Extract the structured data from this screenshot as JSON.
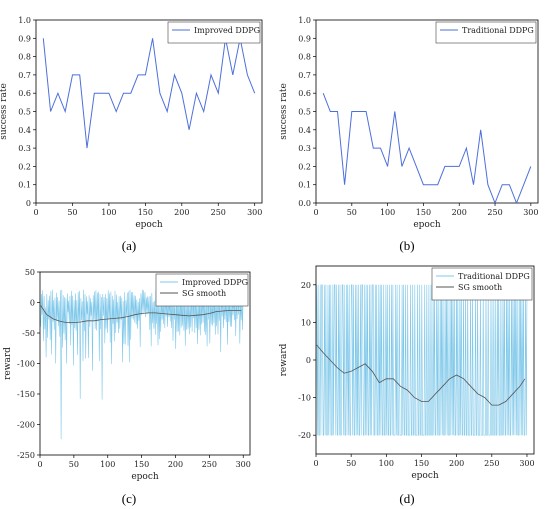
{
  "chart_data": [
    {
      "panel_label": "(a)",
      "type": "line",
      "xlabel": "epoch",
      "ylabel": "success rate",
      "xlim": [
        0,
        310
      ],
      "ylim": [
        0,
        1.0
      ],
      "xticks": [
        "0",
        "50",
        "100",
        "150",
        "200",
        "250",
        "300"
      ],
      "yticks": [
        "0",
        "0.1",
        "0.2",
        "0.3",
        "0.4",
        "0.5",
        "0.6",
        "0.7",
        "0.8",
        "0.9",
        "1.0"
      ],
      "legend_position": "top-right",
      "series": [
        {
          "name": "Improved DDPG",
          "color": "#4d6fdc",
          "x": [
            10,
            20,
            30,
            40,
            50,
            60,
            70,
            80,
            90,
            100,
            110,
            120,
            130,
            140,
            150,
            160,
            170,
            180,
            190,
            200,
            210,
            220,
            230,
            240,
            250,
            260,
            270,
            280,
            290,
            300
          ],
          "y": [
            0.9,
            0.5,
            0.6,
            0.5,
            0.7,
            0.7,
            0.3,
            0.6,
            0.6,
            0.6,
            0.5,
            0.6,
            0.6,
            0.7,
            0.7,
            0.9,
            0.6,
            0.5,
            0.7,
            0.6,
            0.4,
            0.6,
            0.5,
            0.7,
            0.6,
            0.9,
            0.7,
            0.9,
            0.7,
            0.6
          ]
        }
      ]
    },
    {
      "panel_label": "(b)",
      "type": "line",
      "xlabel": "epoch",
      "ylabel": "success rate",
      "xlim": [
        0,
        310
      ],
      "ylim": [
        0,
        1.0
      ],
      "xticks": [
        "0",
        "50",
        "100",
        "150",
        "200",
        "250",
        "300"
      ],
      "yticks": [
        "0.0",
        "0.1",
        "0.2",
        "0.3",
        "0.4",
        "0.5",
        "0.6",
        "0.7",
        "0.8",
        "0.9",
        "1.0"
      ],
      "legend_position": "top-right",
      "series": [
        {
          "name": "Traditional DDPG",
          "color": "#4d6fdc",
          "x": [
            10,
            20,
            30,
            40,
            50,
            60,
            70,
            80,
            90,
            100,
            110,
            120,
            130,
            140,
            150,
            160,
            170,
            180,
            190,
            200,
            210,
            220,
            230,
            240,
            250,
            260,
            270,
            280,
            290,
            300
          ],
          "y": [
            0.6,
            0.5,
            0.5,
            0.1,
            0.5,
            0.5,
            0.5,
            0.3,
            0.3,
            0.2,
            0.5,
            0.2,
            0.3,
            0.2,
            0.1,
            0.1,
            0.1,
            0.2,
            0.2,
            0.2,
            0.3,
            0.1,
            0.4,
            0.1,
            0.0,
            0.1,
            0.1,
            0.0,
            0.1,
            0.2
          ]
        }
      ]
    },
    {
      "panel_label": "(c)",
      "type": "line",
      "xlabel": "epoch",
      "ylabel": "reward",
      "xlim": [
        0,
        310
      ],
      "ylim": [
        -250,
        50
      ],
      "xticks": [
        "0",
        "50",
        "100",
        "150",
        "200",
        "250",
        "300"
      ],
      "yticks": [
        "-250",
        "-200",
        "-150",
        "-100",
        "-50",
        "0",
        "50"
      ],
      "legend_position": "top-right",
      "series": [
        {
          "name": "Improved DDPG",
          "color": "#7fc8ea",
          "style": "dense-noisy",
          "values": [
            -40,
            14,
            -20,
            20,
            -63,
            11,
            -44,
            -8,
            -90,
            14,
            -58,
            4,
            -28,
            11,
            -62,
            19,
            -85,
            21,
            -32,
            4,
            -45,
            8,
            -100,
            16,
            -30,
            9,
            -39,
            3,
            -56,
            20,
            -224,
            21,
            -74,
            12,
            -51,
            9,
            -62,
            7,
            -100,
            15,
            -16,
            3,
            -35,
            11,
            -70,
            19,
            -37,
            11,
            -103,
            4,
            -42,
            15,
            -46,
            4,
            -86,
            17,
            -31,
            19,
            -158,
            7,
            -29,
            2,
            -96,
            21,
            -47,
            14,
            -92,
            10,
            -19,
            2,
            -91,
            12,
            -40,
            7,
            -22,
            1,
            -112,
            12,
            -28,
            18,
            -43,
            20,
            -46,
            16,
            -31,
            18,
            -96,
            14,
            -44,
            9,
            -159,
            14,
            -22,
            9,
            -67,
            14,
            -43,
            7,
            -50,
            20,
            -28,
            15,
            -66,
            18,
            -101,
            11,
            -35,
            5,
            -64,
            19,
            -50,
            13,
            -33,
            1,
            -50,
            10,
            -43,
            11,
            -28,
            8,
            -98,
            2,
            -68,
            17,
            -69,
            4,
            -22,
            16,
            -71,
            18,
            -98,
            21,
            -61,
            17,
            -26,
            17,
            -28,
            12,
            -33,
            11,
            -36,
            5,
            -43,
            1,
            -30,
            7,
            -73,
            15,
            -21,
            21,
            -18,
            20,
            -16,
            17,
            -24,
            8,
            -19,
            10,
            -18,
            10,
            -45,
            11,
            -72,
            16,
            -34,
            1,
            -43,
            3,
            -53,
            20,
            -35,
            4,
            -70,
            12,
            -60,
            2,
            -48,
            10,
            -28,
            2,
            -35,
            18,
            -42,
            17,
            -23,
            12,
            -40,
            10,
            -24,
            5,
            -31,
            11,
            -42,
            15,
            -63,
            6,
            -28,
            3,
            -76,
            13,
            -48,
            16,
            -48,
            8,
            -54,
            20,
            -41,
            6,
            -38,
            14,
            -46,
            5,
            -71,
            17,
            -45,
            3,
            -43,
            5,
            -52,
            2,
            -41,
            20,
            -48,
            11,
            -26,
            10,
            -50,
            20,
            -42,
            6,
            -68,
            9,
            -45,
            11,
            -54,
            17,
            -36,
            14,
            -33,
            20,
            -48,
            14,
            -53,
            3,
            -72,
            20,
            -28,
            15,
            -67,
            6,
            -36,
            10,
            -38,
            12,
            -34,
            8,
            -53,
            17,
            -39,
            3,
            -52,
            10,
            -30,
            14,
            -81,
            19,
            -23,
            17,
            -42,
            1,
            -28,
            7,
            -32,
            12,
            -69,
            19,
            -32,
            7,
            -39,
            4,
            -40,
            9,
            -21,
            11,
            -29,
            20,
            -55,
            7,
            -27,
            17,
            -20,
            19,
            -67,
            2,
            -29,
            6,
            -45,
            20
          ]
        },
        {
          "name": "SG smooth",
          "color": "#555555",
          "style": "smooth",
          "x": [
            1,
            10,
            20,
            30,
            40,
            50,
            60,
            70,
            80,
            90,
            100,
            110,
            120,
            130,
            140,
            150,
            160,
            170,
            180,
            190,
            200,
            210,
            220,
            230,
            240,
            250,
            260,
            270,
            280,
            290,
            297
          ],
          "y": [
            -5,
            -20,
            -27,
            -31,
            -33,
            -33,
            -32,
            -30,
            -30,
            -28,
            -27,
            -26,
            -25,
            -23,
            -20,
            -18,
            -17,
            -17,
            -18,
            -19,
            -20,
            -21,
            -22,
            -21,
            -20,
            -18,
            -15,
            -14,
            -13,
            -13,
            -13
          ]
        }
      ]
    },
    {
      "panel_label": "(d)",
      "type": "line",
      "xlabel": "epoch",
      "ylabel": "reward",
      "xlim": [
        0,
        310
      ],
      "ylim": [
        -25,
        25
      ],
      "xticks": [
        "0",
        "50",
        "100",
        "150",
        "200",
        "250",
        "300"
      ],
      "yticks": [
        "-20",
        "-10",
        "0",
        "10",
        "20"
      ],
      "legend_position": "top-right",
      "series": [
        {
          "name": "Traditional DDPG",
          "color": "#7fc8ea",
          "style": "binary-noisy",
          "values": [
            20,
            -20,
            20,
            -20,
            -20,
            20,
            -20,
            20,
            20,
            -20,
            -20,
            20,
            -20,
            20,
            -20,
            -20,
            20,
            -20,
            20,
            -20,
            20,
            -20,
            -20,
            20,
            -20,
            20,
            20,
            -20,
            20,
            -20,
            -20,
            20,
            -20,
            20,
            -20,
            -20,
            20,
            20,
            -20,
            20,
            -20,
            -20,
            20,
            -20,
            20,
            -20,
            20,
            -20,
            -20,
            20,
            20,
            -20,
            20,
            -20,
            -20,
            20,
            -20,
            20,
            -20,
            20,
            -20,
            -20,
            20,
            -20,
            20,
            20,
            -20,
            -20,
            20,
            -20,
            20,
            -20,
            20,
            -20,
            -20,
            20,
            -20,
            20,
            -20,
            20,
            20,
            -20,
            -20,
            20,
            -20,
            20,
            -20,
            -20,
            20,
            -20,
            20,
            -20,
            20,
            -20,
            -20,
            20,
            -20,
            -20,
            20,
            -20,
            20,
            -20,
            -20,
            20,
            -20,
            -20,
            20,
            -20,
            20,
            -20,
            -20,
            -20,
            20,
            -20,
            20,
            -20,
            -20,
            20,
            -20,
            -20,
            -20,
            20,
            -20,
            20,
            -20,
            -20,
            20,
            -20,
            -20,
            20,
            -20,
            -20,
            -20,
            20,
            -20,
            -20,
            20,
            -20,
            -20,
            20,
            -20,
            -20,
            -20,
            20,
            -20,
            -20,
            20,
            -20,
            -20,
            20,
            -20,
            -20,
            -20,
            20,
            -20,
            -20,
            20,
            -20,
            -20,
            20,
            -20,
            -20,
            20,
            -20,
            -20,
            20,
            -20,
            20,
            -20,
            -20,
            20,
            -20,
            20,
            -20,
            -20,
            20,
            -20,
            20,
            -20,
            20,
            -20,
            -20,
            20,
            -20,
            20,
            -20,
            20,
            -20,
            -20,
            20,
            -20,
            20,
            -20,
            20,
            -20,
            20,
            -20,
            -20,
            20,
            -20,
            20,
            -20,
            -20,
            20,
            -20,
            20,
            -20,
            -20,
            20,
            -20,
            -20,
            20,
            -20,
            -20,
            20,
            -20,
            -20,
            -20,
            20,
            -20,
            -20,
            20,
            -20,
            -20,
            -20,
            20,
            -20,
            -20,
            20,
            -20,
            -20,
            -20,
            20,
            -20,
            -20,
            -20,
            20,
            -20,
            -20,
            -20,
            20,
            -20,
            -20,
            20,
            -20,
            -20,
            -20,
            20,
            -20,
            -20,
            20,
            -20,
            -20,
            20,
            -20,
            -20,
            20,
            -20,
            20,
            -20,
            -20,
            20,
            -20,
            -20,
            20,
            -20,
            20,
            -20,
            -20,
            20,
            -20,
            20,
            -20,
            20,
            -20,
            -20,
            20,
            -20,
            20,
            -20,
            20,
            -20,
            20,
            -20,
            20,
            -20,
            -20,
            20,
            -20,
            20,
            -20,
            20,
            -20,
            20,
            -20,
            -20,
            20,
            -20,
            20
          ]
        },
        {
          "name": "SG smooth",
          "color": "#555555",
          "style": "smooth",
          "x": [
            1,
            10,
            20,
            30,
            40,
            50,
            60,
            70,
            80,
            90,
            100,
            110,
            120,
            130,
            140,
            150,
            160,
            170,
            180,
            190,
            200,
            210,
            220,
            230,
            240,
            250,
            260,
            270,
            280,
            290,
            297
          ],
          "y": [
            4,
            2,
            0,
            -2,
            -3.5,
            -3,
            -2,
            -1,
            -3,
            -6,
            -5,
            -5,
            -7,
            -8,
            -10,
            -11,
            -11,
            -9,
            -7,
            -5,
            -4,
            -5,
            -7,
            -9,
            -10,
            -12,
            -12,
            -11,
            -9,
            -7,
            -5
          ]
        }
      ]
    }
  ]
}
